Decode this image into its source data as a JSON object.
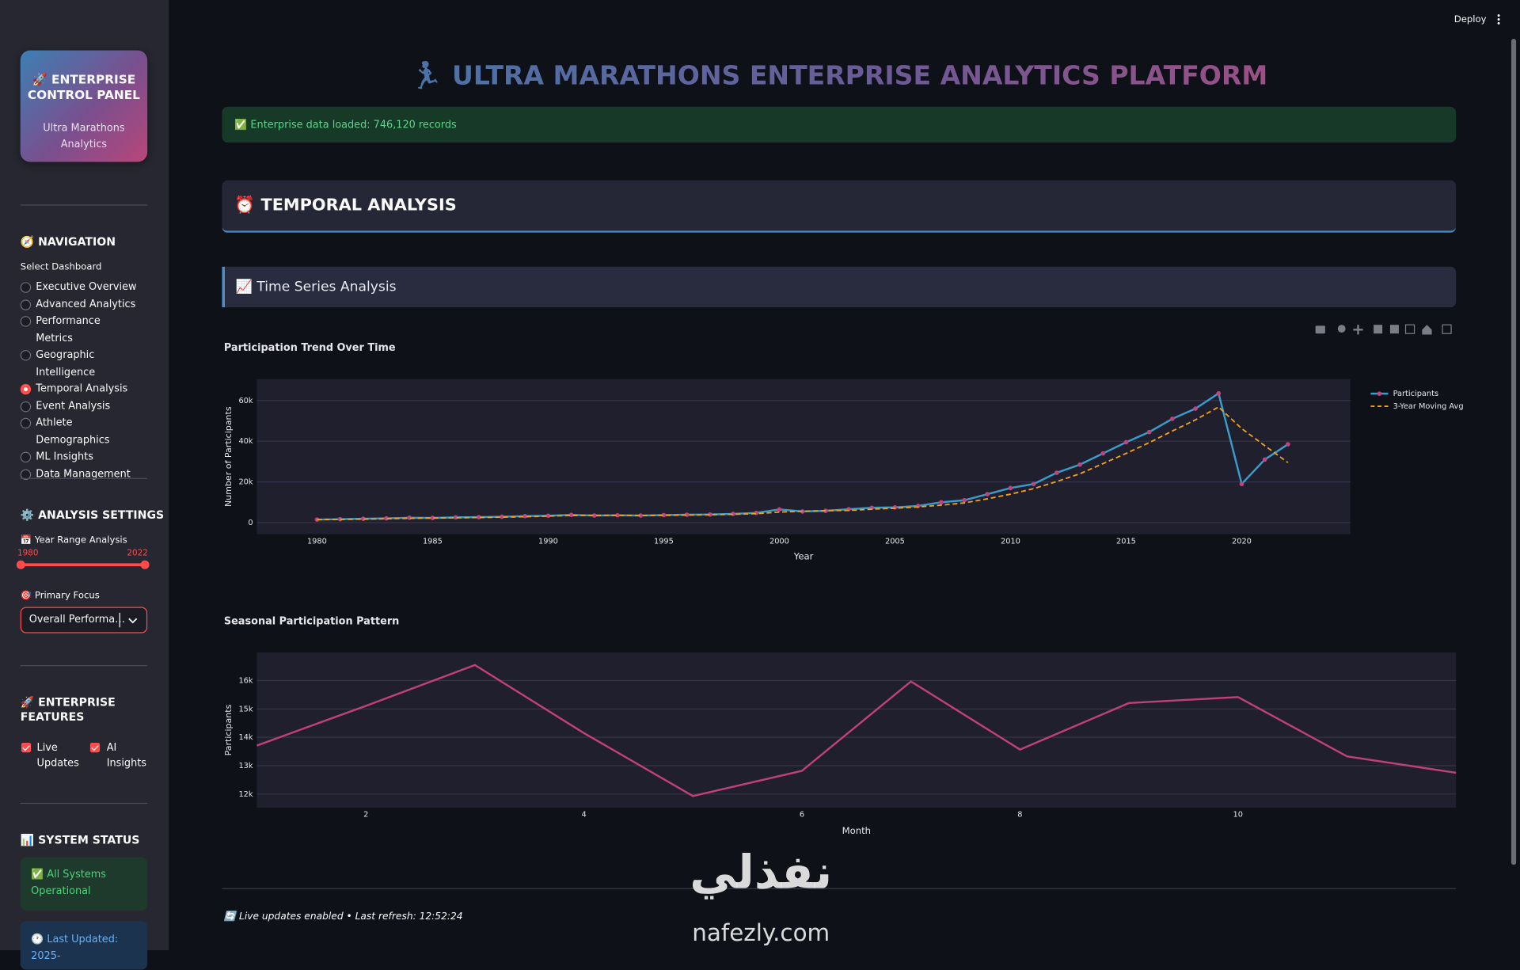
{
  "app": {
    "sidebar": {
      "panel_title": "🚀 ENTERPRISE CONTROL PANEL",
      "panel_subtitle": "Ultra Marathons Analytics",
      "nav_heading": "🧭 NAVIGATION",
      "select_label": "Select Dashboard",
      "options": [
        "Executive Overview",
        "Advanced Analytics",
        "Performance Metrics",
        "Geographic Intelligence",
        "Temporal Analysis",
        "Event Analysis",
        "Athlete Demographics",
        "ML Insights",
        "Data Management"
      ],
      "selected_option": 4,
      "settings_heading": "⚙️ ANALYSIS SETTINGS",
      "year_label": "📅 Year Range Analysis",
      "year_range": [
        1980,
        2022
      ],
      "focus_label": "🎯 Primary Focus",
      "focus_value": "Overall Performa…",
      "features_heading": "🚀 ENTERPRISE FEATURES",
      "features": [
        "Live Updates",
        "AI Insights"
      ],
      "status_heading": "📊 SYSTEM STATUS",
      "status_ok": "✅ All Systems Operational",
      "last_updated": "🕐 Last Updated: 2025-"
    },
    "deploy": "Deploy",
    "title": "🏃 ULTRA MARATHONS ENTERPRISE ANALYTICS PLATFORM",
    "success": "✅ Enterprise data loaded: 746,120 records",
    "section": "⏰ TEMPORAL ANALYSIS",
    "subsection": "📈 Time Series Analysis",
    "footer": "🔄 Live updates enabled • Last refresh: 12:52:24",
    "watermark": [
      "نفذلي",
      "nafezly.com"
    ]
  },
  "chart_data": [
    {
      "type": "line",
      "title": "Participation Trend Over Time",
      "x_label": "Year",
      "y_label": "Number of Participants",
      "x": [
        1980,
        1981,
        1982,
        1983,
        1984,
        1985,
        1986,
        1987,
        1988,
        1989,
        1990,
        1991,
        1992,
        1993,
        1994,
        1995,
        1996,
        1997,
        1998,
        1999,
        2000,
        2001,
        2002,
        2003,
        2004,
        2005,
        2006,
        2007,
        2008,
        2009,
        2010,
        2011,
        2012,
        2013,
        2014,
        2015,
        2016,
        2017,
        2018,
        2019,
        2020,
        2021,
        2022
      ],
      "series": [
        {
          "name": "Participants",
          "color": "#3a9cc9",
          "marker_color": "#c0457f",
          "dash": false,
          "values": [
            1500,
            1700,
            1900,
            2100,
            2400,
            2300,
            2600,
            2700,
            2900,
            3200,
            3400,
            3800,
            3500,
            3600,
            3500,
            3700,
            3900,
            4000,
            4300,
            4800,
            6500,
            5500,
            5800,
            6600,
            7300,
            7500,
            8200,
            10000,
            11000,
            14000,
            17000,
            19000,
            24500,
            28500,
            34000,
            39500,
            44500,
            51000,
            56000,
            63500,
            19000,
            31000,
            38500
          ]
        },
        {
          "name": "3-Year Moving Avg",
          "color": "#f0a020",
          "dash": true,
          "values": [
            1500,
            1600,
            1700,
            1900,
            2100,
            2300,
            2400,
            2500,
            2700,
            2900,
            3200,
            3500,
            3600,
            3600,
            3500,
            3600,
            3700,
            3900,
            4100,
            4400,
            5200,
            5600,
            5900,
            6000,
            6600,
            7100,
            7700,
            8600,
            9700,
            11700,
            14000,
            16700,
            20200,
            24000,
            29000,
            34000,
            39300,
            45000,
            50500,
            56800,
            46200,
            37800,
            29500
          ]
        }
      ],
      "xlim": [
        1977.4,
        2024.7
      ],
      "ylim": [
        -5700,
        70500
      ],
      "xticks": [
        1980,
        1985,
        1990,
        1995,
        2000,
        2005,
        2010,
        2015,
        2020
      ],
      "yticks": [
        0,
        {
          "value": 20000,
          "label": "20k"
        },
        {
          "value": 40000,
          "label": "40k"
        },
        {
          "value": 60000,
          "label": "60k"
        }
      ],
      "grid": true,
      "legend": "right"
    },
    {
      "type": "line",
      "title": "Seasonal Participation Pattern",
      "x_label": "Month",
      "y_label": "Participants",
      "x": [
        1,
        2,
        3,
        4,
        5,
        6,
        7,
        8,
        9,
        10,
        11,
        12
      ],
      "values": [
        13710,
        15110,
        16550,
        14150,
        11930,
        12820,
        15970,
        13570,
        15210,
        15420,
        13330,
        12750
      ],
      "color": "#c0407a",
      "xlim": [
        1,
        12
      ],
      "ylim": [
        11520,
        16990
      ],
      "xticks": [
        2,
        4,
        6,
        8,
        10
      ],
      "yticks": [
        {
          "value": 12000,
          "label": "12k"
        },
        {
          "value": 13000,
          "label": "13k"
        },
        {
          "value": 14000,
          "label": "14k"
        },
        {
          "value": 15000,
          "label": "15k"
        },
        {
          "value": 16000,
          "label": "16k"
        }
      ],
      "grid": true
    }
  ]
}
